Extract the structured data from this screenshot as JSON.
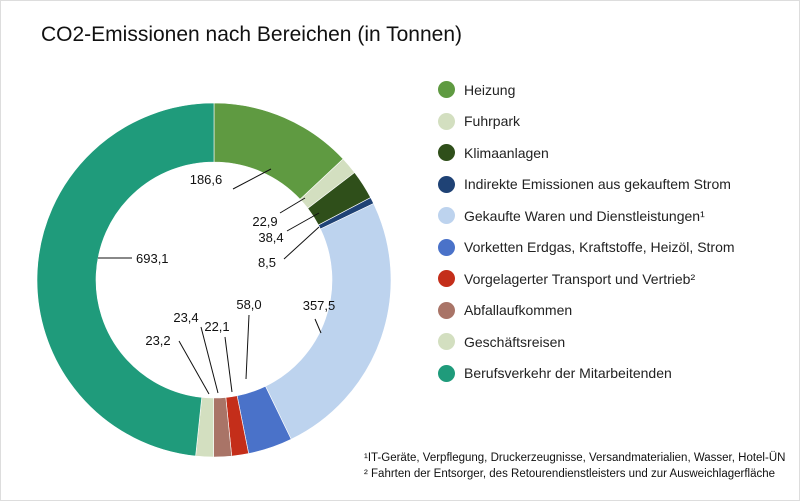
{
  "chart_data": {
    "type": "pie",
    "donut": true,
    "title": "CO2-Emissionen nach Bereichen (in Tonnen)",
    "legend_position": "right",
    "categories": [
      "Heizung",
      "Fuhrpark",
      "Klimaanlagen",
      "Indirekte Emissionen aus gekauftem Strom",
      "Gekaufte Waren und Dienstleistungen¹",
      "Vorketten Erdgas, Kraftstoffe, Heizöl, Strom",
      "Vorgelagerter Transport und Vertrieb²",
      "Abfallaufkommen",
      "Geschäftsreisen",
      "Berufsverkehr der Mitarbeitenden"
    ],
    "values": [
      186.6,
      22.9,
      38.4,
      8.5,
      357.5,
      58.0,
      22.1,
      23.4,
      23.2,
      693.1
    ],
    "labels": [
      "186,6",
      "22,9",
      "38,4",
      "8,5",
      "357,5",
      "58,0",
      "22,1",
      "23,4",
      "23,2",
      "693,1"
    ],
    "colors": [
      "#5f9a41",
      "#d3dfc0",
      "#2f4f1a",
      "#1f4275",
      "#bdd3ee",
      "#4a72c9",
      "#c42e1a",
      "#a97467",
      "#d3dfc0",
      "#1f9b7b"
    ]
  },
  "footnotes": [
    "¹IT-Geräte, Verpflegung, Druckerzeugnisse, Versandmaterialien, Wasser, Hotel-ÜN",
    "² Fahrten der Entsorger, des Retourendienstleisters und zur Ausweichlagerfläche"
  ]
}
